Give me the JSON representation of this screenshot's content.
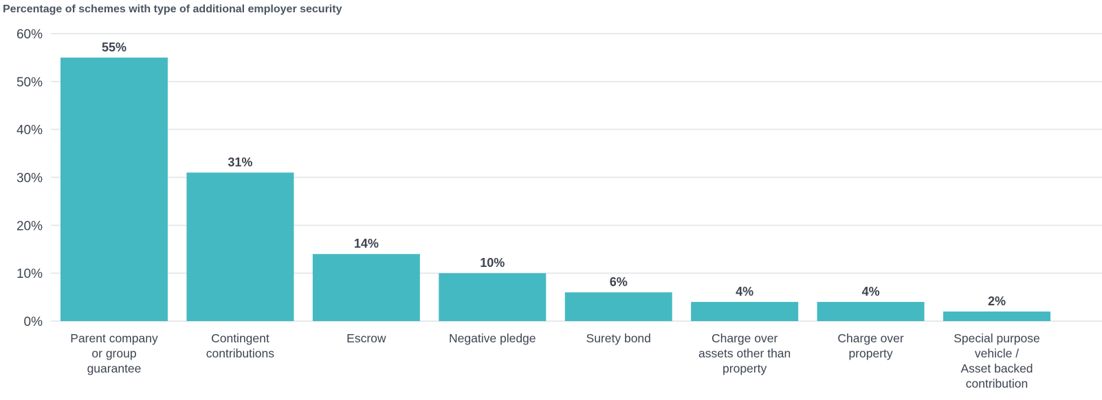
{
  "chart_data": {
    "type": "bar",
    "title": "Percentage of schemes with type of additional employer security",
    "categories": [
      "Parent company or group guarantee",
      "Contingent contributions",
      "Escrow",
      "Negative pledge",
      "Surety bond",
      "Charge over assets other than property",
      "Charge over property",
      "Special purpose vehicle / Asset backed contribution"
    ],
    "category_lines": [
      [
        "Parent company",
        "or group",
        "guarantee"
      ],
      [
        "Contingent",
        "contributions"
      ],
      [
        "Escrow"
      ],
      [
        "Negative pledge"
      ],
      [
        "Surety bond"
      ],
      [
        "Charge over",
        "assets other than",
        "property"
      ],
      [
        "Charge over",
        "property"
      ],
      [
        "Special purpose",
        "vehicle /",
        "Asset backed",
        "contribution"
      ]
    ],
    "values": [
      55,
      31,
      14,
      10,
      6,
      4,
      4,
      2
    ],
    "data_labels": [
      "55%",
      "31%",
      "14%",
      "10%",
      "6%",
      "4%",
      "4%",
      "2%"
    ],
    "xlabel": "",
    "ylabel": "",
    "ylim": [
      0,
      60
    ],
    "yticks": [
      0,
      10,
      20,
      30,
      40,
      50,
      60
    ],
    "ytick_labels": [
      "0%",
      "10%",
      "20%",
      "30%",
      "40%",
      "50%",
      "60%"
    ],
    "grid": true,
    "bar_color": "#45b9c2",
    "grid_color": "#e6e9ec",
    "text_color": "#3d4450"
  }
}
